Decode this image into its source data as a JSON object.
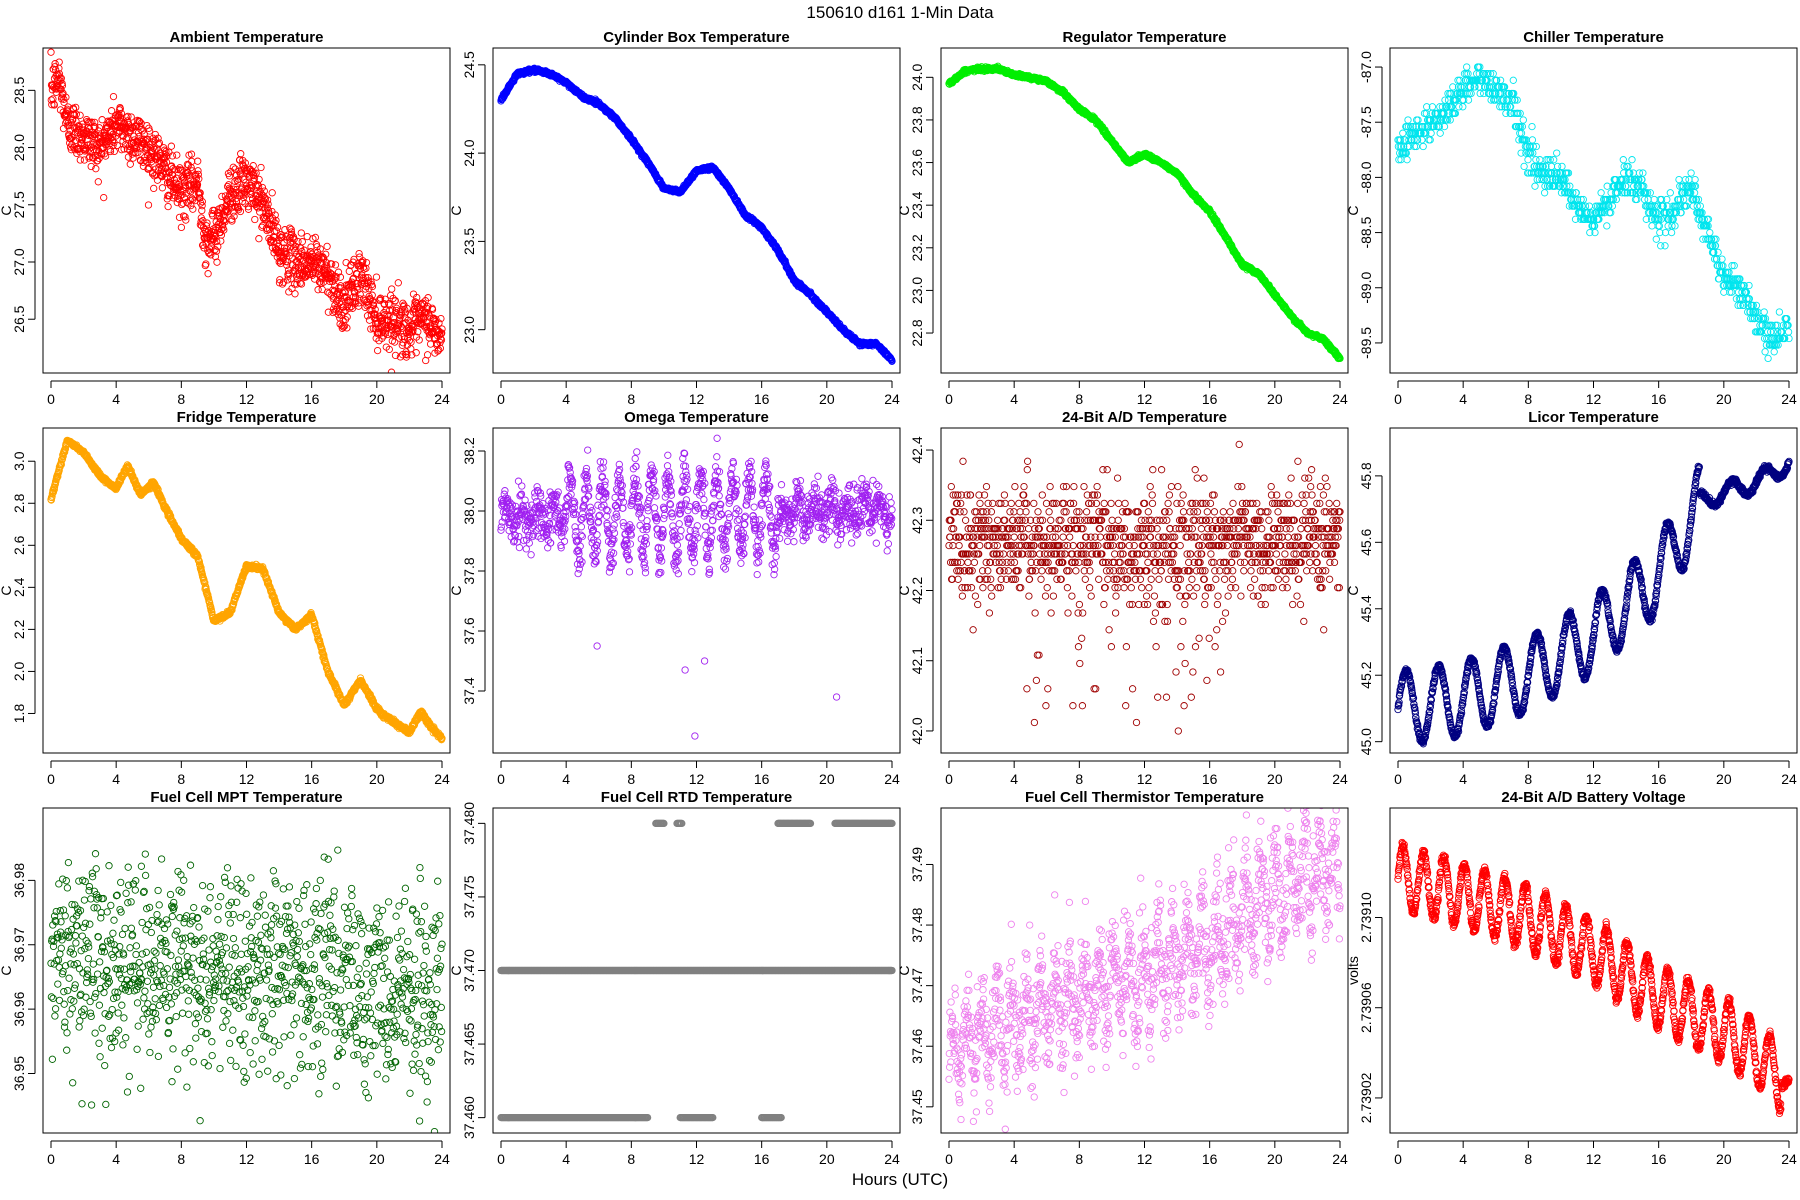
{
  "figure": {
    "title": "150610    d161    1-Min Data",
    "xlabel": "Hours (UTC)"
  },
  "chart_data": [
    {
      "type": "scatter",
      "title": "Ambient Temperature",
      "ylabel": "C",
      "color": "#ff0000",
      "xlim": [
        0,
        24
      ],
      "ylim": [
        26.1,
        28.8
      ],
      "xticks": [
        0,
        4,
        8,
        12,
        16,
        20,
        24
      ],
      "xticklabels": [
        "0",
        "4",
        "8",
        "12",
        "16",
        "20",
        "24"
      ],
      "yticks": [
        26.5,
        27.0,
        27.5,
        28.0,
        28.5
      ],
      "yticklabels": [
        "26.5",
        "27.0",
        "27.5",
        "28.0",
        "28.5"
      ],
      "series_profile": {
        "x": [
          0,
          0.5,
          1,
          2,
          3,
          4,
          5,
          6,
          7,
          8,
          9,
          9.5,
          10,
          11,
          12,
          13,
          14,
          15,
          16,
          17,
          18,
          19,
          20,
          21,
          22,
          23,
          24
        ],
        "y": [
          28.5,
          28.6,
          28.2,
          28.1,
          28.0,
          28.2,
          28.1,
          28.0,
          27.8,
          27.6,
          27.7,
          27.2,
          27.2,
          27.6,
          27.7,
          27.5,
          27.1,
          27.0,
          27.0,
          26.9,
          26.6,
          26.9,
          26.5,
          26.5,
          26.4,
          26.5,
          26.3
        ],
        "noise": 0.12,
        "npoints": 1440
      }
    },
    {
      "type": "scatter",
      "title": "Cylinder Box Temperature",
      "ylabel": "C",
      "color": "#0000ff",
      "xlim": [
        0,
        24
      ],
      "ylim": [
        22.8,
        24.55
      ],
      "xticks": [
        0,
        4,
        8,
        12,
        16,
        20,
        24
      ],
      "xticklabels": [
        "0",
        "4",
        "8",
        "12",
        "16",
        "20",
        "24"
      ],
      "yticks": [
        23.0,
        23.5,
        24.0,
        24.5
      ],
      "yticklabels": [
        "23.0",
        "23.5",
        "24.0",
        "24.5"
      ],
      "series_profile": {
        "x": [
          0,
          1,
          2,
          3,
          4,
          5,
          6,
          7,
          8,
          9,
          10,
          11,
          12,
          13,
          14,
          15,
          16,
          17,
          18,
          19,
          20,
          21,
          22,
          23,
          24
        ],
        "y": [
          24.3,
          24.45,
          24.47,
          24.45,
          24.4,
          24.32,
          24.28,
          24.2,
          24.08,
          23.95,
          23.8,
          23.78,
          23.9,
          23.92,
          23.8,
          23.65,
          23.58,
          23.45,
          23.28,
          23.2,
          23.1,
          23.0,
          22.92,
          22.92,
          22.83
        ],
        "noise": 0.005,
        "npoints": 1440
      }
    },
    {
      "type": "scatter",
      "title": "Regulator Temperature",
      "ylabel": "C",
      "color": "#00ee00",
      "xlim": [
        0,
        24
      ],
      "ylim": [
        22.65,
        24.1
      ],
      "xticks": [
        0,
        4,
        8,
        12,
        16,
        20,
        24
      ],
      "xticklabels": [
        "0",
        "4",
        "8",
        "12",
        "16",
        "20",
        "24"
      ],
      "yticks": [
        22.8,
        23.0,
        23.2,
        23.4,
        23.6,
        23.8,
        24.0
      ],
      "yticklabels": [
        "22.8",
        "23.0",
        "23.2",
        "23.4",
        "23.6",
        "23.8",
        "24.0"
      ],
      "series_profile": {
        "x": [
          0,
          1,
          2,
          3,
          4,
          5,
          6,
          7,
          8,
          9,
          10,
          11,
          12,
          13,
          14,
          15,
          16,
          17,
          18,
          19,
          20,
          21,
          22,
          23,
          24
        ],
        "y": [
          23.97,
          24.03,
          24.04,
          24.04,
          24.01,
          24.0,
          23.98,
          23.93,
          23.85,
          23.8,
          23.7,
          23.6,
          23.64,
          23.6,
          23.55,
          23.45,
          23.37,
          23.25,
          23.12,
          23.08,
          22.98,
          22.88,
          22.8,
          22.77,
          22.68
        ],
        "noise": 0.004,
        "npoints": 1440
      }
    },
    {
      "type": "scatter",
      "title": "Chiller Temperature",
      "ylabel": "C",
      "color": "#00e5ee",
      "xlim": [
        0,
        24
      ],
      "ylim": [
        -89.7,
        -86.9
      ],
      "xticks": [
        0,
        4,
        8,
        12,
        16,
        20,
        24
      ],
      "xticklabels": [
        "0",
        "4",
        "8",
        "12",
        "16",
        "20",
        "24"
      ],
      "yticks": [
        -89.5,
        -89.0,
        -88.5,
        -88.0,
        -87.5,
        -87.0
      ],
      "yticklabels": [
        "-89.5",
        "-89.0",
        "-88.5",
        "-88.0",
        "-87.5",
        "-87.0"
      ],
      "series_profile": {
        "x": [
          0,
          1,
          2,
          3,
          4,
          5,
          6,
          7,
          8,
          9,
          10,
          11,
          12,
          13,
          14,
          15,
          16,
          17,
          18,
          19,
          20,
          21,
          22,
          23,
          24
        ],
        "y": [
          -87.7,
          -87.6,
          -87.5,
          -87.4,
          -87.2,
          -87.1,
          -87.2,
          -87.3,
          -87.8,
          -88.0,
          -88.0,
          -88.3,
          -88.4,
          -88.2,
          -88.0,
          -88.1,
          -88.4,
          -88.3,
          -88.1,
          -88.5,
          -88.9,
          -89.0,
          -89.3,
          -89.5,
          -89.3
        ],
        "noise": 0.08,
        "quantum": 0.06,
        "npoints": 900
      }
    },
    {
      "type": "scatter",
      "title": "Fridge Temperature",
      "ylabel": "C",
      "color": "#ffa500",
      "xlim": [
        0,
        24
      ],
      "ylim": [
        1.65,
        3.12
      ],
      "xticks": [
        0,
        4,
        8,
        12,
        16,
        20,
        24
      ],
      "xticklabels": [
        "0",
        "4",
        "8",
        "12",
        "16",
        "20",
        "24"
      ],
      "yticks": [
        1.8,
        2.0,
        2.2,
        2.4,
        2.6,
        2.8,
        3.0
      ],
      "yticklabels": [
        "1.8",
        "2.0",
        "2.2",
        "2.4",
        "2.6",
        "2.8",
        "3.0"
      ],
      "series_profile": {
        "x": [
          0,
          1,
          2,
          3,
          4,
          4.7,
          5.5,
          6.3,
          7,
          8,
          9,
          10,
          11,
          12,
          13,
          14,
          15,
          16,
          17,
          18,
          19,
          20,
          21,
          22,
          22.7,
          23.3,
          24
        ],
        "y": [
          2.82,
          3.1,
          3.04,
          2.93,
          2.87,
          2.98,
          2.84,
          2.9,
          2.78,
          2.63,
          2.55,
          2.24,
          2.28,
          2.5,
          2.49,
          2.28,
          2.2,
          2.27,
          2.0,
          1.84,
          1.96,
          1.82,
          1.76,
          1.71,
          1.81,
          1.74,
          1.68
        ],
        "noise": 0.005,
        "npoints": 1440
      }
    },
    {
      "type": "scatter",
      "title": "Omega Temperature",
      "ylabel": "C",
      "color": "#a020f0",
      "xlim": [
        0,
        24
      ],
      "ylim": [
        37.22,
        38.25
      ],
      "xticks": [
        0,
        4,
        8,
        12,
        16,
        20,
        24
      ],
      "xticklabels": [
        "0",
        "4",
        "8",
        "12",
        "16",
        "20",
        "24"
      ],
      "yticks": [
        37.4,
        37.6,
        37.8,
        38.0,
        38.2
      ],
      "yticklabels": [
        "37.4",
        "37.6",
        "37.8",
        "38.0",
        "38.2"
      ],
      "series_profile": {
        "x": [
          0,
          24
        ],
        "y": [
          37.98,
          38.0
        ],
        "noise": 0.04,
        "osc_amp": 0.13,
        "osc_period": 1.0,
        "osc_window": [
          4,
          17
        ],
        "npoints": 1300
      },
      "outliers": [
        [
          5.9,
          37.55
        ],
        [
          11.3,
          37.47
        ],
        [
          11.9,
          37.25
        ],
        [
          12.5,
          37.5
        ],
        [
          20.6,
          37.38
        ]
      ]
    },
    {
      "type": "scatter",
      "title": "24-Bit A/D Temperature",
      "ylabel": "C",
      "color": "#a00000",
      "xlim": [
        0,
        24
      ],
      "ylim": [
        41.98,
        42.42
      ],
      "xticks": [
        0,
        4,
        8,
        12,
        16,
        20,
        24
      ],
      "xticklabels": [
        "0",
        "4",
        "8",
        "12",
        "16",
        "20",
        "24"
      ],
      "yticks": [
        42.0,
        42.1,
        42.2,
        42.3,
        42.4
      ],
      "yticklabels": [
        "42.0",
        "42.1",
        "42.2",
        "42.3",
        "42.4"
      ],
      "series_profile": {
        "x": [
          0,
          24
        ],
        "y": [
          42.27,
          42.27
        ],
        "noise": 0.04,
        "quantum": 0.012,
        "dip_window": [
          4.5,
          17
        ],
        "dip_depth": 0.24,
        "npoints": 1200
      }
    },
    {
      "type": "scatter",
      "title": "Licor Temperature",
      "ylabel": "C",
      "color": "#000080",
      "xlim": [
        0,
        24
      ],
      "ylim": [
        44.99,
        45.92
      ],
      "xticks": [
        0,
        4,
        8,
        12,
        16,
        20,
        24
      ],
      "xticklabels": [
        "0",
        "4",
        "8",
        "12",
        "16",
        "20",
        "24"
      ],
      "yticks": [
        45.0,
        45.2,
        45.4,
        45.6,
        45.8
      ],
      "yticklabels": [
        "45.0",
        "45.2",
        "45.4",
        "45.6",
        "45.8"
      ],
      "series_profile": {
        "x": [
          0,
          4,
          8,
          12,
          16,
          18.5,
          20,
          22,
          24
        ],
        "y": [
          45.1,
          45.13,
          45.2,
          45.32,
          45.5,
          45.72,
          45.75,
          45.78,
          45.84
        ],
        "noise": 0.004,
        "osc_amp": 0.11,
        "osc_period": 2.0,
        "osc_window": [
          0,
          18.5
        ],
        "npoints": 1440
      }
    },
    {
      "type": "scatter",
      "title": "Fuel Cell MPT Temperature",
      "ylabel": "C",
      "color": "#006400",
      "xlim": [
        0,
        24
      ],
      "ylim": [
        36.942,
        36.99
      ],
      "xticks": [
        0,
        4,
        8,
        12,
        16,
        20,
        24
      ],
      "xticklabels": [
        "0",
        "4",
        "8",
        "12",
        "16",
        "20",
        "24"
      ],
      "yticks": [
        36.95,
        36.96,
        36.97,
        36.98
      ],
      "yticklabels": [
        "36.95",
        "36.96",
        "36.97",
        "36.98"
      ],
      "series_profile": {
        "x": [
          0,
          24
        ],
        "y": [
          36.968,
          36.963
        ],
        "noise": 0.008,
        "npoints": 1100
      }
    },
    {
      "type": "scatter",
      "title": "Fuel Cell RTD Temperature",
      "ylabel": "C",
      "color": "#808080",
      "xlim": [
        0,
        24
      ],
      "ylim": [
        37.4595,
        37.4805
      ],
      "xticks": [
        0,
        4,
        8,
        12,
        16,
        20,
        24
      ],
      "xticklabels": [
        "0",
        "4",
        "8",
        "12",
        "16",
        "20",
        "24"
      ],
      "yticks": [
        37.46,
        37.465,
        37.47,
        37.475,
        37.48
      ],
      "yticklabels": [
        "37.460",
        "37.465",
        "37.470",
        "37.475",
        "37.480"
      ],
      "levels": [
        {
          "y": 37.47,
          "ranges": [
            [
              0,
              24
            ]
          ],
          "density": 1.0
        },
        {
          "y": 37.46,
          "ranges": [
            [
              0,
              9
            ],
            [
              11,
              13
            ],
            [
              16,
              17.2
            ]
          ],
          "density": 0.45
        },
        {
          "y": 37.48,
          "ranges": [
            [
              9.5,
              10
            ],
            [
              10.8,
              11.1
            ],
            [
              17,
              19
            ],
            [
              20.5,
              24
            ]
          ],
          "density": 0.45
        }
      ]
    },
    {
      "type": "scatter",
      "title": "Fuel Cell Thermistor Temperature",
      "ylabel": "C",
      "color": "#ee82ee",
      "xlim": [
        0,
        24
      ],
      "ylim": [
        37.447,
        37.498
      ],
      "xticks": [
        0,
        4,
        8,
        12,
        16,
        20,
        24
      ],
      "xticklabels": [
        "0",
        "4",
        "8",
        "12",
        "16",
        "20",
        "24"
      ],
      "yticks": [
        37.45,
        37.46,
        37.47,
        37.48,
        37.49
      ],
      "yticklabels": [
        "37.45",
        "37.46",
        "37.47",
        "37.48",
        "37.49"
      ],
      "series_profile": {
        "x": [
          0,
          4,
          8,
          12,
          16,
          20,
          24
        ],
        "y": [
          37.459,
          37.464,
          37.468,
          37.472,
          37.477,
          37.485,
          37.49
        ],
        "noise": 0.004,
        "osc_amp": 0.006,
        "osc_period": 0.9,
        "osc_window": [
          0,
          24
        ],
        "npoints": 1300
      }
    },
    {
      "type": "scatter",
      "title": "24-Bit A/D Battery Voltage",
      "ylabel": "volts",
      "color": "#ff0000",
      "xlim": [
        0,
        24
      ],
      "ylim": [
        2.739008,
        2.739145
      ],
      "xticks": [
        0,
        4,
        8,
        12,
        16,
        20,
        24
      ],
      "xticklabels": [
        "0",
        "4",
        "8",
        "12",
        "16",
        "20",
        "24"
      ],
      "yticks": [
        2.73902,
        2.73906,
        2.7391
      ],
      "yticklabels": [
        "2.73902",
        "2.73906",
        "2.73910"
      ],
      "series_profile": {
        "x": [
          0,
          4,
          8,
          12,
          16,
          20,
          22,
          24
        ],
        "y": [
          2.739118,
          2.73911,
          2.7391,
          2.739085,
          2.739065,
          2.73905,
          2.73904,
          2.739025
        ],
        "noise": 1e-06,
        "osc_amp": 1.4e-05,
        "osc_period": 1.25,
        "osc_window": [
          0,
          23.5
        ],
        "npoints": 1440
      }
    }
  ]
}
